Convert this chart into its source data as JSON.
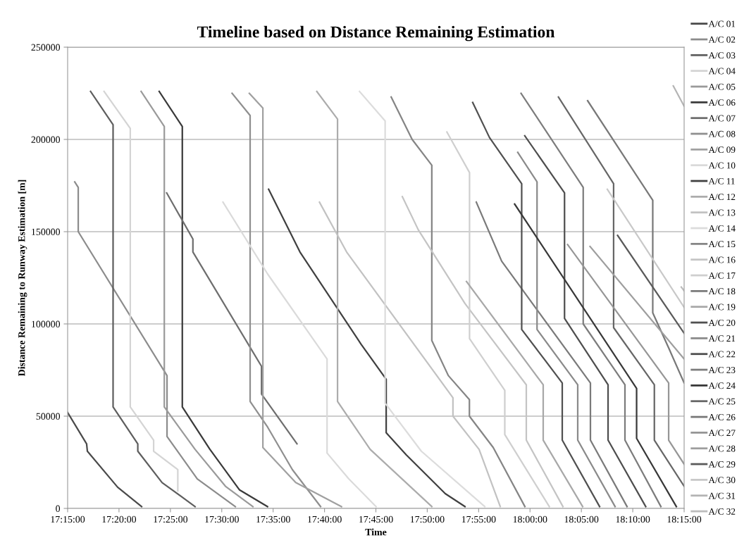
{
  "chart_data": {
    "type": "line",
    "title": "Timeline based on Distance Remaining Estimation",
    "xlabel": "Time",
    "ylabel": "Distance Remaining to Runway Estimation [m]",
    "xlim": [
      17.25,
      18.25
    ],
    "ylim": [
      0,
      250000
    ],
    "xticks": [
      {
        "value": 17.25,
        "label": "17:15:00"
      },
      {
        "value": 17.3333,
        "label": "17:20:00"
      },
      {
        "value": 17.4167,
        "label": "17:25:00"
      },
      {
        "value": 17.5,
        "label": "17:30:00"
      },
      {
        "value": 17.5833,
        "label": "17:35:00"
      },
      {
        "value": 17.6667,
        "label": "17:40:00"
      },
      {
        "value": 17.75,
        "label": "17:45:00"
      },
      {
        "value": 17.8333,
        "label": "17:50:00"
      },
      {
        "value": 17.9167,
        "label": "17:55:00"
      },
      {
        "value": 18.0,
        "label": "18:00:00"
      },
      {
        "value": 18.0833,
        "label": "18:05:00"
      },
      {
        "value": 18.1667,
        "label": "18:10:00"
      },
      {
        "value": 18.25,
        "label": "18:15:00"
      }
    ],
    "yticks": [
      0,
      50000,
      100000,
      150000,
      200000,
      250000
    ],
    "grid": "y",
    "legend": "right",
    "marker": "none",
    "line_style": "solid",
    "series": [
      {
        "name": "A/C 01",
        "color": "#4a4a4a",
        "x": [
          17.25,
          17.2808,
          17.282,
          17.3311,
          17.37
        ],
        "values": [
          52000,
          35000,
          31000,
          11500,
          1000
        ]
      },
      {
        "name": "A/C 02",
        "color": "#8c8c8c",
        "x": [
          17.2615,
          17.2672,
          17.2672,
          17.4112,
          17.4112,
          17.4603,
          17.522
        ],
        "values": [
          177000,
          174000,
          150000,
          72000,
          39000,
          16000,
          1000
        ]
      },
      {
        "name": "A/C 03",
        "color": "#5e5e5e",
        "x": [
          17.2872,
          17.3237,
          17.3237,
          17.3638,
          17.3638,
          17.4032,
          17.4567
        ],
        "values": [
          226000,
          208000,
          55000,
          35000,
          31000,
          14000,
          1000
        ]
      },
      {
        "name": "A/C 04",
        "color": "#d4d4d4",
        "x": [
          17.3091,
          17.3516,
          17.3516,
          17.3895,
          17.3895,
          17.4287,
          17.4287
        ],
        "values": [
          226000,
          206000,
          55000,
          37000,
          31000,
          21000,
          9500
        ]
      },
      {
        "name": "A/C 05",
        "color": "#9a9a9a",
        "x": [
          17.3692,
          17.4068,
          17.4068,
          17.4567,
          17.506,
          17.5505
        ],
        "values": [
          226000,
          207000,
          55000,
          32000,
          12000,
          1000
        ]
      },
      {
        "name": "A/C 06",
        "color": "#3a3a3a",
        "x": [
          17.3985,
          17.436,
          17.436,
          17.4808,
          17.5289,
          17.5742
        ],
        "values": [
          226000,
          207000,
          55000,
          32000,
          10000,
          1000
        ]
      },
      {
        "name": "A/C 07",
        "color": "#6e6e6e",
        "x": [
          17.4107,
          17.4532,
          17.4532,
          17.5645,
          17.5645,
          17.622
        ],
        "values": [
          171000,
          146000,
          139000,
          77000,
          62000,
          35000
        ]
      },
      {
        "name": "A/C 08",
        "color": "#8f8f8f",
        "x": [
          17.5167,
          17.546,
          17.546,
          17.5745,
          17.6146,
          17.6603
        ],
        "values": [
          225000,
          213000,
          58000,
          44000,
          21000,
          1000
        ]
      },
      {
        "name": "A/C 09",
        "color": "#a0a0a0",
        "x": [
          17.5447,
          17.5667,
          17.5667,
          17.62,
          17.6942
        ],
        "values": [
          225000,
          217000,
          33000,
          14000,
          1000
        ]
      },
      {
        "name": "A/C 10",
        "color": "#dadada",
        "x": [
          17.502,
          17.5745,
          17.6708,
          17.6708,
          17.706,
          17.7503
        ],
        "values": [
          166000,
          127000,
          81000,
          30000,
          16000,
          1000
        ]
      },
      {
        "name": "A/C 11",
        "color": "#404040",
        "x": [
          17.576,
          17.6268,
          17.726,
          17.7667,
          17.7667,
          17.7993,
          17.8625,
          17.8945
        ],
        "values": [
          173000,
          139000,
          89000,
          70000,
          41000,
          29000,
          8000,
          1000
        ]
      },
      {
        "name": "A/C 12",
        "color": "#acacac",
        "x": [
          17.6542,
          17.6878,
          17.6878,
          17.7407,
          17.8407
        ],
        "values": [
          226000,
          211000,
          58000,
          32000,
          1000
        ]
      },
      {
        "name": "A/C 13",
        "color": "#c2c2c2",
        "x": [
          17.6585,
          17.7025,
          17.875,
          17.875,
          17.9174,
          17.9517
        ],
        "values": [
          166000,
          139000,
          60000,
          50000,
          32000,
          1000
        ]
      },
      {
        "name": "A/C 14",
        "color": "#dcdcdc",
        "x": [
          17.7235,
          17.765,
          17.765,
          17.8237,
          17.9266
        ],
        "values": [
          226000,
          210000,
          57000,
          31000,
          1000
        ]
      },
      {
        "name": "A/C 15",
        "color": "#858585",
        "x": [
          17.7748,
          17.8088,
          17.8407,
          17.8407,
          17.8675,
          17.9017,
          17.9017,
          17.9403,
          17.9917
        ],
        "values": [
          223000,
          200000,
          186000,
          91000,
          72000,
          59000,
          50000,
          33000,
          1000
        ]
      },
      {
        "name": "A/C 16",
        "color": "#c4c4c4",
        "x": [
          17.7929,
          17.8188,
          17.8946,
          17.994,
          17.994,
          18.0534
        ],
        "values": [
          169000,
          151000,
          111000,
          67000,
          37000,
          1000
        ]
      },
      {
        "name": "A/C 17",
        "color": "#cfcfcf",
        "x": [
          17.8652,
          17.9019,
          17.9019,
          17.9591,
          17.9591,
          18.0313
        ],
        "values": [
          204000,
          182000,
          92000,
          64000,
          40000,
          1000
        ]
      },
      {
        "name": "A/C 18",
        "color": "#7a7a7a",
        "x": [
          17.9129,
          17.954,
          18.098,
          18.098,
          18.1574
        ],
        "values": [
          166000,
          134000,
          68000,
          37000,
          1000
        ]
      },
      {
        "name": "A/C 19",
        "color": "#a8a8a8",
        "x": [
          17.8969,
          18.0214,
          18.0214,
          18.0854
        ],
        "values": [
          123000,
          67000,
          37000,
          1000
        ]
      },
      {
        "name": "A/C 20",
        "color": "#505050",
        "x": [
          17.907,
          17.9343,
          17.9865,
          17.9865,
          18.0138,
          18.0523,
          18.0523,
          18.1129
        ],
        "values": [
          220000,
          201000,
          176000,
          97000,
          85000,
          68000,
          37000,
          1000
        ]
      },
      {
        "name": "A/C 21",
        "color": "#8a8a8a",
        "x": [
          17.9801,
          18.0114,
          18.0114,
          18.0774,
          18.0774,
          18.138
        ],
        "values": [
          193000,
          177000,
          97000,
          67000,
          37000,
          1000
        ]
      },
      {
        "name": "A/C 22",
        "color": "#4e4e4e",
        "x": [
          17.9915,
          18.056,
          18.056,
          18.1266,
          18.1266,
          18.1877
        ],
        "values": [
          202000,
          171000,
          103000,
          67000,
          37000,
          1000
        ]
      },
      {
        "name": "A/C 23",
        "color": "#7c7c7c",
        "x": [
          17.9855,
          18.0863,
          18.0863,
          18.154,
          18.154,
          18.2123
        ],
        "values": [
          225000,
          174000,
          100000,
          67000,
          37000,
          1000
        ]
      },
      {
        "name": "A/C 24",
        "color": "#383838",
        "x": [
          17.975,
          18.1729,
          18.1729,
          18.2374
        ],
        "values": [
          165000,
          65000,
          38000,
          1000
        ]
      },
      {
        "name": "A/C 25",
        "color": "#666666",
        "x": [
          18.0461,
          18.1356,
          18.1356,
          18.2017,
          18.2017,
          18.25
        ],
        "values": [
          223000,
          176000,
          98000,
          67000,
          37000,
          12000
        ]
      },
      {
        "name": "A/C 26",
        "color": "#787878",
        "x": [
          18.0934,
          18.1991,
          18.1991,
          18.2249,
          18.25
        ],
        "values": [
          221000,
          167000,
          106000,
          87000,
          68000
        ]
      },
      {
        "name": "A/C 27",
        "color": "#969696",
        "x": [
          18.061,
          18.2249,
          18.2249,
          18.25
        ],
        "values": [
          143000,
          68000,
          37000,
          24000
        ]
      },
      {
        "name": "A/C 28",
        "color": "#9e9e9e",
        "x": [
          18.0973,
          18.25
        ],
        "values": [
          142000,
          81000
        ]
      },
      {
        "name": "A/C 29",
        "color": "#5a5a5a",
        "x": [
          18.142,
          18.25
        ],
        "values": [
          148000,
          95000
        ]
      },
      {
        "name": "A/C 30",
        "color": "#c8c8c8",
        "x": [
          18.1254,
          18.25
        ],
        "values": [
          173000,
          109000
        ]
      },
      {
        "name": "A/C 31",
        "color": "#b4b4b4",
        "x": [
          18.2324,
          18.25
        ],
        "values": [
          229000,
          218000
        ]
      },
      {
        "name": "A/C 32",
        "color": "#bcbcbc",
        "x": [
          18.2454,
          18.25
        ],
        "values": [
          120000,
          118000
        ]
      }
    ]
  }
}
